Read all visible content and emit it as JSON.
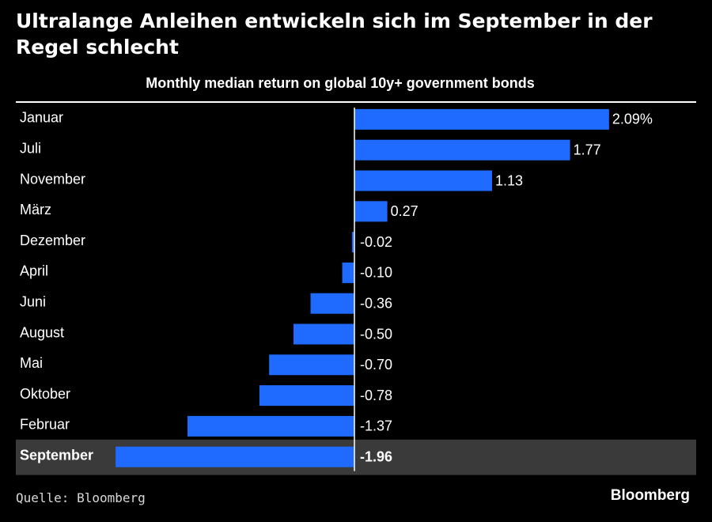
{
  "headline": "Ultralange Anleihen entwickeln sich im September in der Regel schlecht",
  "source": "Quelle: Bloomberg",
  "brand": "Bloomberg",
  "colors": {
    "bar": "#1f6bff",
    "highlight_row": "#3a3a3a",
    "background": "#000000",
    "text": "#ffffff"
  },
  "chart_data": {
    "type": "bar",
    "orientation": "horizontal",
    "title": "Monthly median return on global 10y+ government bonds",
    "categories": [
      "Januar",
      "Juli",
      "November",
      "März",
      "Dezember",
      "April",
      "Juni",
      "August",
      "Mai",
      "Oktober",
      "Februar",
      "September"
    ],
    "values": [
      2.09,
      1.77,
      1.13,
      0.27,
      -0.02,
      -0.1,
      -0.36,
      -0.5,
      -0.7,
      -0.78,
      -1.37,
      -1.96
    ],
    "value_labels": [
      "2.09%",
      "1.77",
      "1.13",
      "0.27",
      "-0.02",
      "-0.10",
      "-0.36",
      "-0.50",
      "-0.70",
      "-0.78",
      "-1.37",
      "-1.96"
    ],
    "highlight": "September",
    "xlim": [
      -2.09,
      2.09
    ],
    "unit": "%",
    "grid": false,
    "legend": "none"
  }
}
